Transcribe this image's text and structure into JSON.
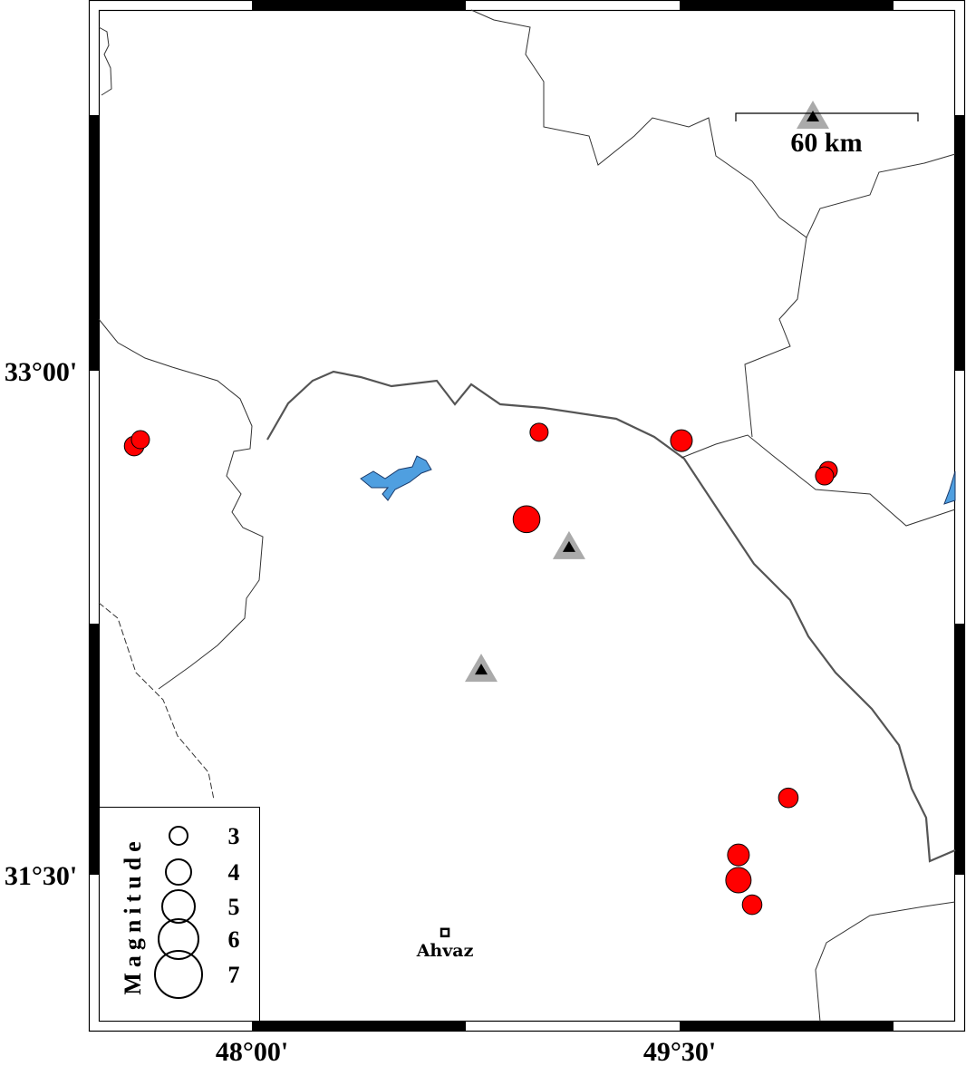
{
  "map": {
    "extent": {
      "lon_range": [
        47.55,
        50.55
      ],
      "lat_range": [
        30.98,
        33.97
      ]
    },
    "axes": {
      "x_ticks": [
        {
          "lon": 48.0,
          "label": "48°00'"
        },
        {
          "lon": 49.5,
          "label": "49°30'"
        }
      ],
      "y_ticks": [
        {
          "lat": 33.0,
          "label": "33°00'"
        },
        {
          "lat": 31.5,
          "label": "31°30'"
        }
      ]
    },
    "scale_bar": {
      "label": "60 km"
    },
    "colors": {
      "event": "#ff0000",
      "station_outer": "#aaaaaa",
      "station_inner": "#000000",
      "water": "#4f9fe0",
      "border": "#333333"
    },
    "events": [
      {
        "lon": 47.587,
        "lat": 32.776,
        "mag": 3.2
      },
      {
        "lon": 47.609,
        "lat": 32.795,
        "mag": 3.0
      },
      {
        "lon": 49.007,
        "lat": 32.817,
        "mag": 3.0
      },
      {
        "lon": 49.506,
        "lat": 32.792,
        "mag": 3.5
      },
      {
        "lon": 48.963,
        "lat": 32.558,
        "mag": 4.2
      },
      {
        "lon": 50.021,
        "lat": 32.703,
        "mag": 3.0
      },
      {
        "lon": 50.008,
        "lat": 32.687,
        "mag": 3.0
      },
      {
        "lon": 49.881,
        "lat": 31.729,
        "mag": 3.2
      },
      {
        "lon": 49.706,
        "lat": 31.559,
        "mag": 3.5
      },
      {
        "lon": 49.706,
        "lat": 31.484,
        "mag": 4.0
      },
      {
        "lon": 49.754,
        "lat": 31.411,
        "mag": 3.2
      }
    ],
    "stations": [
      {
        "lon": 49.967,
        "lat": 33.758
      },
      {
        "lon": 49.112,
        "lat": 32.477
      },
      {
        "lon": 48.804,
        "lat": 32.112
      }
    ],
    "cities": [
      {
        "name": "Ahvaz",
        "lon": 48.677,
        "lat": 31.328
      }
    ]
  },
  "legend": {
    "title": "Magnitude",
    "items": [
      {
        "mag": 3,
        "label": "3"
      },
      {
        "mag": 4,
        "label": "4"
      },
      {
        "mag": 5,
        "label": "5"
      },
      {
        "mag": 6,
        "label": "6"
      },
      {
        "mag": 7,
        "label": "7"
      }
    ]
  }
}
